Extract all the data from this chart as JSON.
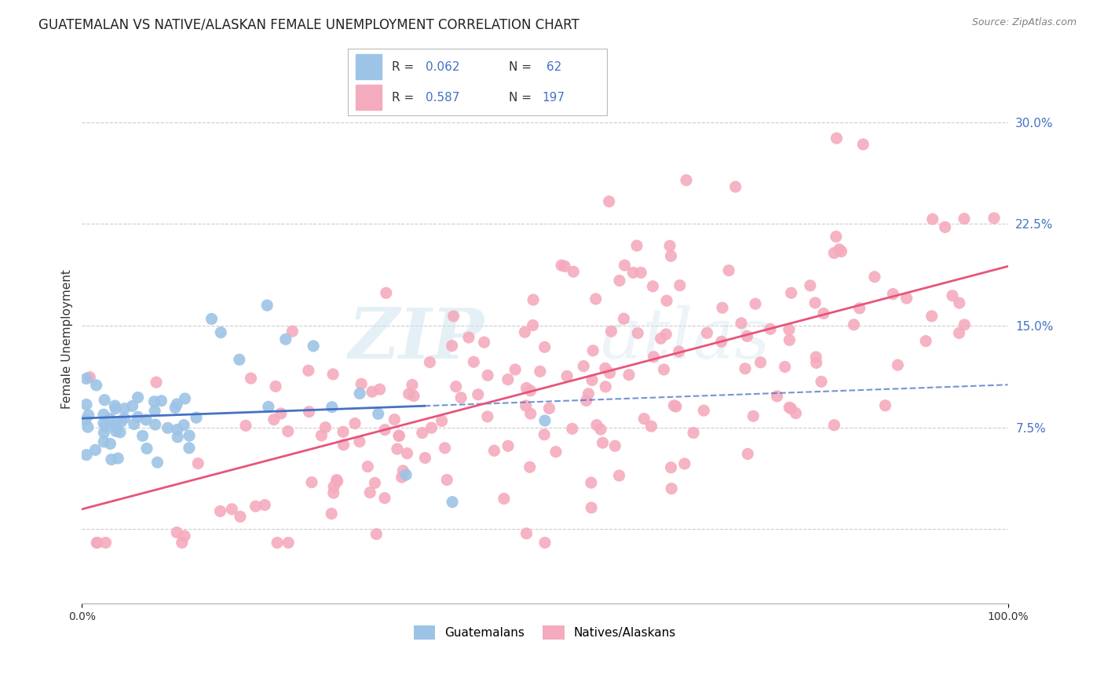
{
  "title": "GUATEMALAN VS NATIVE/ALASKAN FEMALE UNEMPLOYMENT CORRELATION CHART",
  "source": "Source: ZipAtlas.com",
  "ylabel": "Female Unemployment",
  "ytick_vals": [
    0.0,
    0.075,
    0.15,
    0.225,
    0.3
  ],
  "ytick_labels": [
    "",
    "7.5%",
    "15.0%",
    "22.5%",
    "30.0%"
  ],
  "xlim": [
    0.0,
    1.0
  ],
  "ylim": [
    -0.055,
    0.335
  ],
  "watermark_zip": "ZIP",
  "watermark_atlas": "atlas",
  "blue_color": "#9DC3E6",
  "pink_color": "#F4ABBD",
  "blue_line_color": "#4472C4",
  "pink_line_color": "#E8547A",
  "background_color": "#FFFFFF",
  "grid_color": "#CCCCCC",
  "legend_text_color": "#4472C4",
  "title_fontsize": 12,
  "ytick_color": "#4472C4",
  "source_color": "#808080"
}
